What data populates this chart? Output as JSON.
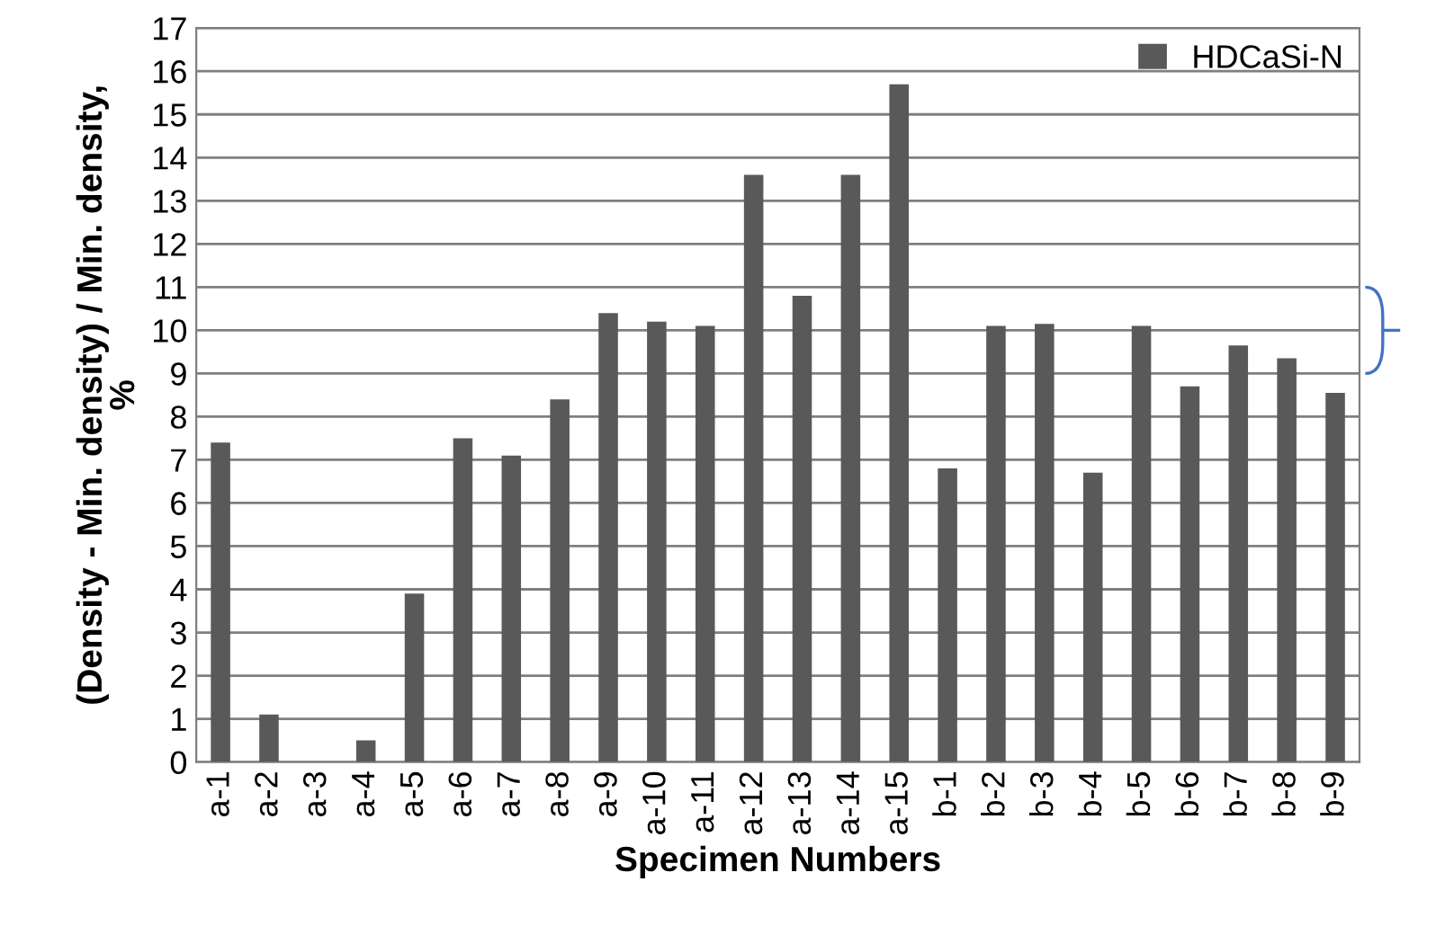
{
  "chart_data": {
    "type": "bar",
    "xlabel": "Specimen Numbers",
    "ylabel": "(Density - Min. density) / Min. density,\n%",
    "categories": [
      "a-1",
      "a-2",
      "a-3",
      "a-4",
      "a-5",
      "a-6",
      "a-7",
      "a-8",
      "a-9",
      "a-10",
      "a-11",
      "a-12",
      "a-13",
      "a-14",
      "a-15",
      "b-1",
      "b-2",
      "b-3",
      "b-4",
      "b-5",
      "b-6",
      "b-7",
      "b-8",
      "b-9"
    ],
    "series": [
      {
        "name": "HDCaSi-N",
        "color": "#595959",
        "values": [
          7.4,
          1.1,
          0,
          0.5,
          3.9,
          7.5,
          7.1,
          8.4,
          10.4,
          10.2,
          10.1,
          13.6,
          10.8,
          13.6,
          15.7,
          6.8,
          10.1,
          10.15,
          6.7,
          10.1,
          8.7,
          9.65,
          9.35,
          8.55
        ]
      }
    ],
    "ylim": [
      0,
      17
    ],
    "yticks": [
      0,
      1,
      2,
      3,
      4,
      5,
      6,
      7,
      8,
      9,
      10,
      11,
      12,
      13,
      14,
      15,
      16,
      17
    ],
    "grid": "y",
    "legend": "top right"
  }
}
